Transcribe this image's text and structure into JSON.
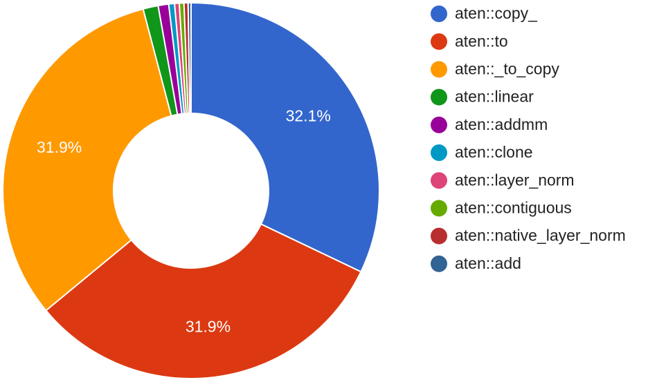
{
  "chart_data": {
    "type": "pie",
    "donut": true,
    "legend_position": "right",
    "series": [
      {
        "name": "aten::copy_",
        "value": 32.1,
        "color": "#3366cc",
        "label": "32.1%"
      },
      {
        "name": "aten::to",
        "value": 31.9,
        "color": "#dc3912",
        "label": "31.9%"
      },
      {
        "name": "aten::_to_copy",
        "value": 31.9,
        "color": "#ff9900",
        "label": "31.9%"
      },
      {
        "name": "aten::linear",
        "value": 1.3,
        "color": "#109618",
        "label": ""
      },
      {
        "name": "aten::addmm",
        "value": 0.9,
        "color": "#990099",
        "label": ""
      },
      {
        "name": "aten::clone",
        "value": 0.5,
        "color": "#0099c6",
        "label": ""
      },
      {
        "name": "aten::layer_norm",
        "value": 0.4,
        "color": "#dd4477",
        "label": ""
      },
      {
        "name": "aten::contiguous",
        "value": 0.4,
        "color": "#66aa00",
        "label": ""
      },
      {
        "name": "aten::native_layer_norm",
        "value": 0.35,
        "color": "#b82e2e",
        "label": ""
      },
      {
        "name": "aten::add",
        "value": 0.25,
        "color": "#316395",
        "label": ""
      }
    ]
  }
}
